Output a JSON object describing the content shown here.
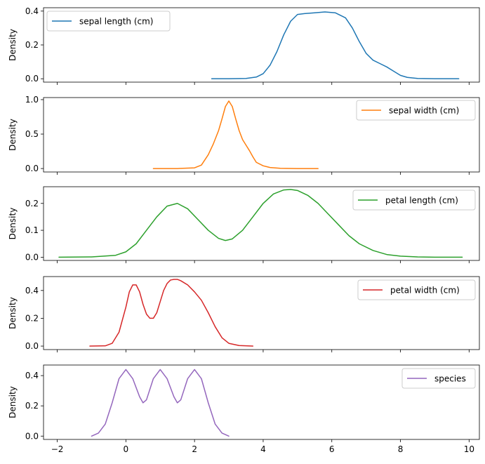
{
  "chart_data": {
    "type": "line",
    "shared_x": true,
    "xlim": [
      -2.4,
      10.3
    ],
    "xticks": [
      -2,
      0,
      2,
      4,
      6,
      8,
      10
    ],
    "xtick_labels": [
      "−2",
      "0",
      "2",
      "4",
      "6",
      "8",
      "10"
    ],
    "grid": false,
    "subplots": [
      {
        "ylabel": "Density",
        "ylim": [
          -0.02,
          0.42
        ],
        "yticks": [
          0.0,
          0.2,
          0.4
        ],
        "ytick_labels": [
          "0.0",
          "0.2",
          "0.4"
        ],
        "legend_position": "top-left",
        "series": {
          "name": "sepal length (cm)",
          "color": "#1f77b4",
          "x": [
            2.5,
            3.0,
            3.5,
            3.8,
            4.0,
            4.2,
            4.4,
            4.6,
            4.8,
            5.0,
            5.2,
            5.5,
            5.8,
            6.1,
            6.4,
            6.6,
            6.8,
            7.0,
            7.2,
            7.4,
            7.6,
            7.8,
            8.0,
            8.2,
            8.5,
            9.0,
            9.7
          ],
          "y": [
            0.0,
            0.0,
            0.002,
            0.01,
            0.03,
            0.08,
            0.16,
            0.26,
            0.34,
            0.38,
            0.385,
            0.39,
            0.395,
            0.39,
            0.36,
            0.3,
            0.22,
            0.15,
            0.11,
            0.09,
            0.07,
            0.045,
            0.02,
            0.008,
            0.002,
            0.0,
            0.0
          ]
        }
      },
      {
        "ylabel": "Density",
        "ylim": [
          -0.05,
          1.03
        ],
        "yticks": [
          0.0,
          0.5,
          1.0
        ],
        "ytick_labels": [
          "0.0",
          "0.5",
          "1.0"
        ],
        "legend_position": "top-right",
        "series": {
          "name": "sepal width (cm)",
          "color": "#ff7f0e",
          "x": [
            0.8,
            1.5,
            2.0,
            2.2,
            2.4,
            2.55,
            2.7,
            2.8,
            2.9,
            3.0,
            3.1,
            3.2,
            3.3,
            3.4,
            3.5,
            3.6,
            3.7,
            3.8,
            4.0,
            4.2,
            4.5,
            5.0,
            5.6
          ],
          "y": [
            0.0,
            0.0,
            0.01,
            0.05,
            0.2,
            0.36,
            0.55,
            0.72,
            0.9,
            0.98,
            0.9,
            0.72,
            0.55,
            0.42,
            0.34,
            0.26,
            0.17,
            0.09,
            0.04,
            0.015,
            0.003,
            0.0,
            0.0
          ]
        }
      },
      {
        "ylabel": "Density",
        "ylim": [
          -0.012,
          0.262
        ],
        "yticks": [
          0.0,
          0.1,
          0.2
        ],
        "ytick_labels": [
          "0.0",
          "0.1",
          "0.2"
        ],
        "legend_position": "top-right",
        "series": {
          "name": "petal length (cm)",
          "color": "#2ca02c",
          "x": [
            -1.95,
            -1.0,
            -0.3,
            0.0,
            0.3,
            0.6,
            0.9,
            1.2,
            1.5,
            1.8,
            2.1,
            2.4,
            2.7,
            2.9,
            3.1,
            3.4,
            3.7,
            4.0,
            4.3,
            4.6,
            4.8,
            5.0,
            5.3,
            5.6,
            5.9,
            6.2,
            6.5,
            6.8,
            7.2,
            7.6,
            8.0,
            8.5,
            9.0,
            9.8
          ],
          "y": [
            0.0,
            0.001,
            0.007,
            0.02,
            0.05,
            0.1,
            0.15,
            0.19,
            0.2,
            0.18,
            0.14,
            0.1,
            0.07,
            0.062,
            0.068,
            0.1,
            0.15,
            0.2,
            0.235,
            0.25,
            0.252,
            0.248,
            0.23,
            0.2,
            0.16,
            0.12,
            0.08,
            0.05,
            0.025,
            0.01,
            0.004,
            0.001,
            0.0,
            0.0
          ]
        }
      },
      {
        "ylabel": "Density",
        "ylim": [
          -0.025,
          0.5
        ],
        "yticks": [
          0.0,
          0.2,
          0.4
        ],
        "ytick_labels": [
          "0.0",
          "0.2",
          "0.4"
        ],
        "legend_position": "top-right",
        "series": {
          "name": "petal width (cm)",
          "color": "#d62728",
          "x": [
            -1.05,
            -0.6,
            -0.4,
            -0.2,
            0.0,
            0.1,
            0.2,
            0.3,
            0.4,
            0.5,
            0.6,
            0.7,
            0.8,
            0.9,
            1.0,
            1.1,
            1.2,
            1.3,
            1.4,
            1.5,
            1.6,
            1.8,
            2.0,
            2.2,
            2.4,
            2.6,
            2.8,
            3.0,
            3.3,
            3.7
          ],
          "y": [
            0.0,
            0.002,
            0.02,
            0.1,
            0.28,
            0.39,
            0.44,
            0.44,
            0.39,
            0.3,
            0.23,
            0.2,
            0.2,
            0.24,
            0.32,
            0.4,
            0.45,
            0.475,
            0.48,
            0.48,
            0.47,
            0.44,
            0.39,
            0.33,
            0.24,
            0.14,
            0.06,
            0.02,
            0.004,
            0.0
          ]
        }
      },
      {
        "ylabel": "Density",
        "ylim": [
          -0.022,
          0.47
        ],
        "yticks": [
          0.0,
          0.2,
          0.4
        ],
        "ytick_labels": [
          "0.0",
          "0.2",
          "0.4"
        ],
        "legend_position": "top-right",
        "series": {
          "name": "species",
          "color": "#9467bd",
          "x": [
            -1.0,
            -0.8,
            -0.6,
            -0.4,
            -0.2,
            0.0,
            0.2,
            0.4,
            0.5,
            0.6,
            0.8,
            1.0,
            1.2,
            1.4,
            1.5,
            1.6,
            1.8,
            2.0,
            2.2,
            2.4,
            2.6,
            2.8,
            3.0
          ],
          "y": [
            0.0,
            0.02,
            0.08,
            0.22,
            0.38,
            0.44,
            0.38,
            0.26,
            0.22,
            0.24,
            0.38,
            0.44,
            0.38,
            0.26,
            0.22,
            0.24,
            0.38,
            0.44,
            0.38,
            0.22,
            0.08,
            0.02,
            0.0
          ]
        }
      }
    ]
  }
}
